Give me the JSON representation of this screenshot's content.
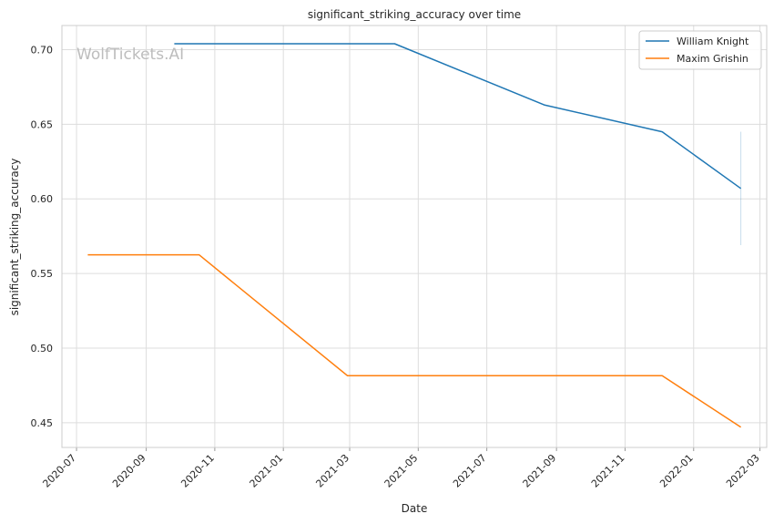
{
  "chart_data": {
    "type": "line",
    "title": "significant_striking_accuracy over time",
    "xlabel": "Date",
    "ylabel": "significant_striking_accuracy",
    "watermark": "WolfTickets.AI",
    "grid": true,
    "legend_position": "top-right",
    "x_range": [
      "2020-06-18",
      "2022-03-07"
    ],
    "ylim": [
      0.4334,
      0.7162
    ],
    "x_ticks": [
      "2020-07",
      "2020-09",
      "2020-11",
      "2021-01",
      "2021-03",
      "2021-05",
      "2021-07",
      "2021-09",
      "2021-11",
      "2022-01",
      "2022-03"
    ],
    "y_ticks": [
      0.45,
      0.5,
      0.55,
      0.6,
      0.65,
      0.7
    ],
    "y_tick_labels": [
      "0.45",
      "0.50",
      "0.55",
      "0.60",
      "0.65",
      "0.70"
    ],
    "series": [
      {
        "name": "William Knight",
        "color": "#1f77b4",
        "x": [
          "2020-09-26",
          "2021-04-10",
          "2021-08-21",
          "2021-12-04",
          "2022-02-12"
        ],
        "y": [
          0.704,
          0.704,
          0.663,
          0.645,
          0.607
        ],
        "error_band": {
          "x": "2022-02-12",
          "low": 0.569,
          "high": 0.645
        }
      },
      {
        "name": "Maxim Grishin",
        "color": "#ff7f0e",
        "x": [
          "2020-07-11",
          "2020-10-18",
          "2021-02-27",
          "2021-12-04",
          "2022-02-12"
        ],
        "y": [
          0.5625,
          0.5625,
          0.4815,
          0.4815,
          0.447
        ]
      }
    ]
  }
}
